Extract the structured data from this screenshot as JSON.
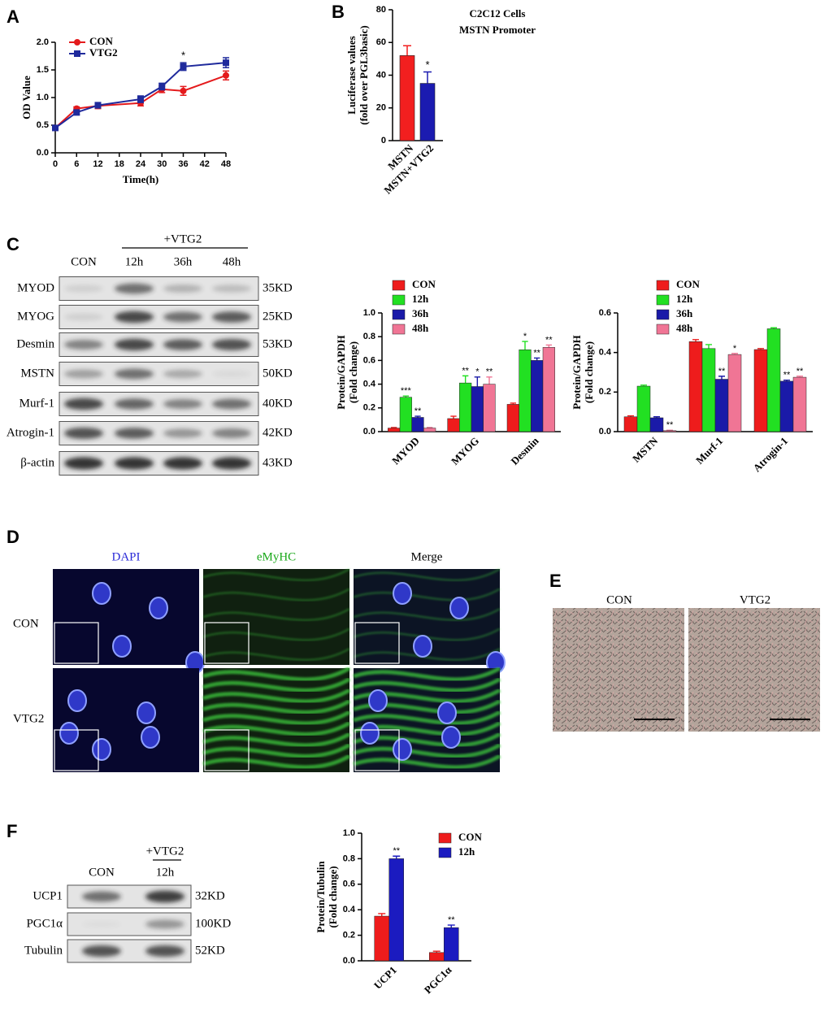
{
  "panel_letters": [
    "A",
    "B",
    "C",
    "D",
    "E",
    "F"
  ],
  "chart_data": [
    {
      "type": "line",
      "xlabel": "Time(h)",
      "ylabel": [
        "OD Value"
      ],
      "x": [
        0,
        6,
        12,
        24,
        30,
        36,
        48
      ],
      "series": [
        {
          "name": "CON",
          "color": "#e41a1c",
          "marker": "circle",
          "values": [
            0.45,
            0.8,
            0.85,
            0.9,
            1.15,
            1.12,
            1.4
          ],
          "errors": [
            0.02,
            0.03,
            0.05,
            0.05,
            0.06,
            0.08,
            0.08
          ],
          "annotations": [
            null,
            null,
            null,
            null,
            null,
            null,
            null
          ]
        },
        {
          "name": "VTG2",
          "color": "#1f2a9c",
          "marker": "square",
          "values": [
            0.45,
            0.73,
            0.86,
            0.97,
            1.2,
            1.56,
            1.63
          ],
          "errors": [
            0.02,
            0.04,
            0.05,
            0.06,
            0.06,
            0.07,
            0.09
          ],
          "annotations": [
            null,
            null,
            null,
            null,
            null,
            "*",
            null
          ]
        }
      ],
      "xlim": [
        0,
        48
      ],
      "xticks": [
        0,
        6,
        12,
        18,
        24,
        30,
        36,
        42,
        48
      ],
      "ylim": [
        0,
        2
      ],
      "yticks": [
        {
          "value": 0,
          "label": "0.0"
        },
        0.5,
        {
          "value": 1,
          "label": "1.0"
        },
        1.5,
        {
          "value": 2,
          "label": "2.0"
        }
      ],
      "legend": "upper left"
    },
    {
      "type": "bar",
      "title": [
        "C2C12 Cells",
        "MSTN Promoter"
      ],
      "ylabel": [
        "Luciferase values",
        "(fold over PGL3basic)"
      ],
      "categories": [
        "MSTN",
        "MSTN+VTG2"
      ],
      "values": [
        52,
        35
      ],
      "errors": [
        6,
        7
      ],
      "annotations": [
        null,
        "*"
      ],
      "colors": [
        "#f21f1f",
        "#1b1bb0"
      ],
      "ylim": [
        0,
        80
      ],
      "yticks": [
        0,
        20,
        40,
        60,
        80
      ]
    },
    {
      "type": "grouped_bar",
      "ylabel": [
        "Protein/GAPDH",
        "(Fold change)"
      ],
      "categories": [
        "MYOD",
        "MYOG",
        "Desmin"
      ],
      "series": [
        {
          "name": "CON",
          "color": "#ee1c1c",
          "values": [
            0.03,
            0.11,
            0.23
          ],
          "errors": [
            0.005,
            0.02,
            0.01
          ],
          "annotations": [
            null,
            null,
            null
          ]
        },
        {
          "name": "12h",
          "color": "#22e022",
          "values": [
            0.29,
            0.41,
            0.69
          ],
          "errors": [
            0.01,
            0.06,
            0.07
          ],
          "annotations": [
            "***",
            "**",
            "*"
          ]
        },
        {
          "name": "36h",
          "color": "#1a1aa8",
          "values": [
            0.12,
            0.38,
            0.6
          ],
          "errors": [
            0.01,
            0.08,
            0.02
          ],
          "annotations": [
            "**",
            "*",
            "**"
          ]
        },
        {
          "name": "48h",
          "color": "#f07595",
          "values": [
            0.03,
            0.4,
            0.71
          ],
          "errors": [
            0.005,
            0.06,
            0.02
          ],
          "annotations": [
            null,
            "**",
            "**"
          ]
        }
      ],
      "ylim": [
        0,
        1
      ],
      "yticks": [
        {
          "value": 0,
          "label": "0.0"
        },
        0.2,
        0.4,
        0.6,
        0.8,
        {
          "value": 1,
          "label": "1.0"
        }
      ],
      "legend": "upper left"
    },
    {
      "type": "grouped_bar",
      "ylabel": [
        "Protein/GAPDH",
        "(Fold change)"
      ],
      "categories": [
        "MSTN",
        "Murf-1",
        "Atrogin-1"
      ],
      "series": [
        {
          "name": "CON",
          "color": "#ee1c1c",
          "values": [
            0.075,
            0.455,
            0.415
          ],
          "errors": [
            0.005,
            0.01,
            0.005
          ],
          "annotations": [
            null,
            null,
            null
          ]
        },
        {
          "name": "12h",
          "color": "#22e022",
          "values": [
            0.23,
            0.42,
            0.52
          ],
          "errors": [
            0.005,
            0.02,
            0.005
          ],
          "annotations": [
            null,
            null,
            null
          ]
        },
        {
          "name": "36h",
          "color": "#1a1aa8",
          "values": [
            0.07,
            0.265,
            0.255
          ],
          "errors": [
            0.005,
            0.015,
            0.005
          ],
          "annotations": [
            null,
            "**",
            "**"
          ]
        },
        {
          "name": "48h",
          "color": "#f07595",
          "values": [
            0.005,
            0.39,
            0.275
          ],
          "errors": [
            0.002,
            0.005,
            0.005
          ],
          "annotations": [
            "**",
            "*",
            "**"
          ]
        }
      ],
      "ylim": [
        0,
        0.6
      ],
      "yticks": [
        {
          "value": 0,
          "label": "0.0"
        },
        0.2,
        0.4,
        0.6
      ],
      "legend": "upper left"
    },
    {
      "type": "grouped_bar",
      "ylabel": [
        "Protein/Tubulin",
        "(Fold change)"
      ],
      "categories": [
        "UCP1",
        "PGC1α"
      ],
      "series": [
        {
          "name": "CON",
          "color": "#ee1c1c",
          "values": [
            0.35,
            0.065
          ],
          "errors": [
            0.02,
            0.01
          ],
          "annotations": [
            null,
            null
          ]
        },
        {
          "name": "12h",
          "color": "#1b1bc0",
          "values": [
            0.8,
            0.26
          ],
          "errors": [
            0.02,
            0.02
          ],
          "annotations": [
            "**",
            "**"
          ]
        }
      ],
      "ylim": [
        0,
        1
      ],
      "yticks": [
        {
          "value": 0,
          "label": "0.0"
        },
        0.2,
        0.4,
        0.6,
        0.8,
        {
          "value": 1,
          "label": "1.0"
        }
      ],
      "legend": "upper right"
    }
  ],
  "blot_c": {
    "header": "CON",
    "treatment": "+VTG2",
    "lanes": [
      "12h",
      "36h",
      "48h"
    ],
    "rows": [
      {
        "protein": "MYOD",
        "size": "35KD"
      },
      {
        "protein": "MYOG",
        "size": "25KD"
      },
      {
        "protein": "Desmin",
        "size": "53KD"
      },
      {
        "protein": "MSTN",
        "size": "50KD"
      },
      {
        "protein": "Murf-1",
        "size": "40KD"
      },
      {
        "protein": "Atrogin-1",
        "size": "42KD"
      },
      {
        "protein": "β-actin",
        "size": "43KD"
      }
    ]
  },
  "micrographs_d": {
    "columns": [
      "DAPI",
      "eMyHC",
      "Merge"
    ],
    "rows": [
      "CON",
      "VTG2"
    ]
  },
  "photos_e": {
    "columns": [
      "CON",
      "VTG2"
    ]
  },
  "blot_f": {
    "header": "CON",
    "treatment": "+VTG2",
    "lanes": [
      "12h"
    ],
    "rows": [
      {
        "protein": "UCP1",
        "size": "32KD"
      },
      {
        "protein": "PGC1α",
        "size": "100KD"
      },
      {
        "protein": "Tubulin",
        "size": "52KD"
      }
    ]
  }
}
